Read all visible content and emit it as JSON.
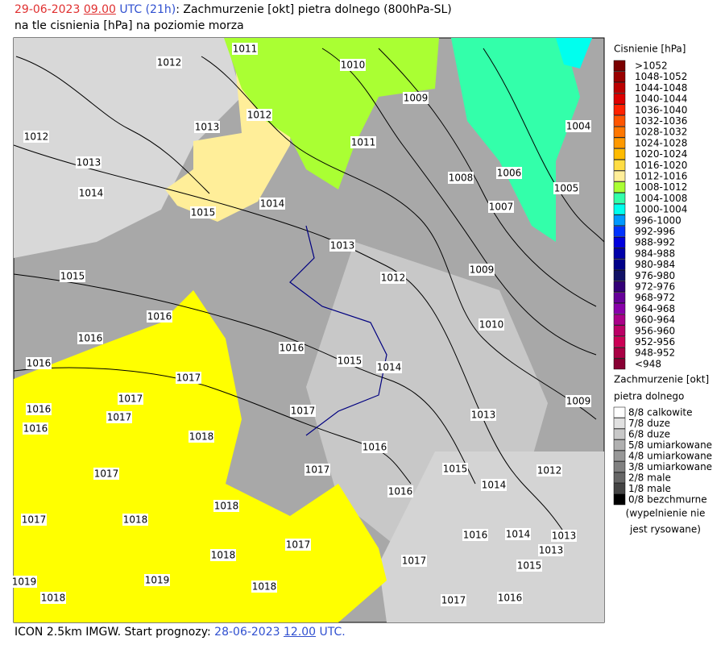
{
  "header": {
    "date": "29-06-2023",
    "time": "09.00",
    "tz": "UTC",
    "lead": "(21h)",
    "title": ": Zachmurzenie [okt] pietra dolnego (800hPa-SL)",
    "subtitle": "na tle cisnienia [hPa] na poziomie morza"
  },
  "pressure_legend": {
    "title": "Cisnienie [hPa]",
    "items": [
      {
        "label": ">1052",
        "color": "#7a0000"
      },
      {
        "label": "1048-1052",
        "color": "#990000"
      },
      {
        "label": "1044-1048",
        "color": "#bb0000"
      },
      {
        "label": "1040-1044",
        "color": "#dd0000"
      },
      {
        "label": "1036-1040",
        "color": "#ff2200"
      },
      {
        "label": "1032-1036",
        "color": "#ff5500"
      },
      {
        "label": "1028-1032",
        "color": "#ff7700"
      },
      {
        "label": "1024-1028",
        "color": "#ff9900"
      },
      {
        "label": "1020-1024",
        "color": "#ffbb00"
      },
      {
        "label": "1016-1020",
        "color": "#ffdd44"
      },
      {
        "label": "1012-1016",
        "color": "#ffee99"
      },
      {
        "label": "1008-1012",
        "color": "#aaff33"
      },
      {
        "label": "1004-1008",
        "color": "#33ffaa"
      },
      {
        "label": "1000-1004",
        "color": "#00ffee"
      },
      {
        "label": "996-1000",
        "color": "#0099ff"
      },
      {
        "label": "992-996",
        "color": "#0033ff"
      },
      {
        "label": "988-992",
        "color": "#0000dd"
      },
      {
        "label": "984-988",
        "color": "#0000aa"
      },
      {
        "label": "980-984",
        "color": "#000088"
      },
      {
        "label": "976-980",
        "color": "#111166"
      },
      {
        "label": "972-976",
        "color": "#330077"
      },
      {
        "label": "968-972",
        "color": "#660099"
      },
      {
        "label": "964-968",
        "color": "#8800aa"
      },
      {
        "label": "960-964",
        "color": "#aa0088"
      },
      {
        "label": "956-960",
        "color": "#bb0066"
      },
      {
        "label": "952-956",
        "color": "#cc0055"
      },
      {
        "label": "948-952",
        "color": "#aa0044"
      },
      {
        "label": "<948",
        "color": "#880033"
      }
    ]
  },
  "cloud_legend": {
    "title": "Zachmurzenie [okt]",
    "subtitle": "pietra dolnego",
    "items": [
      {
        "label": "8/8 calkowite",
        "color": "#ffffff"
      },
      {
        "label": "7/8 duze",
        "color": "#e0e0e0"
      },
      {
        "label": "6/8 duze",
        "color": "#c8c8c8"
      },
      {
        "label": "5/8 umiarkowane",
        "color": "#b0b0b0"
      },
      {
        "label": "4/8 umiarkowane",
        "color": "#989898"
      },
      {
        "label": "3/8 umiarkowane",
        "color": "#808080"
      },
      {
        "label": "2/8 male",
        "color": "#666666"
      },
      {
        "label": "1/8 male",
        "color": "#444444"
      },
      {
        "label": "0/8 bezchmurne",
        "color": "#000000"
      }
    ],
    "note": [
      "(wypelnienie nie",
      "jest rysowane)"
    ]
  },
  "isobar_labels": [
    "1011",
    "1010",
    "1012",
    "1009",
    "1004",
    "1012",
    "1013",
    "1012",
    "1011",
    "1013",
    "1008",
    "1006",
    "1005",
    "1014",
    "1014",
    "1007",
    "1015",
    "1013",
    "1009",
    "1012",
    "1015",
    "1016",
    "1010",
    "1016",
    "1016",
    "1015",
    "1014",
    "1016",
    "1017",
    "1009",
    "1017",
    "1016",
    "1017",
    "1017",
    "1013",
    "1016",
    "1018",
    "1016",
    "1015",
    "1017",
    "1012",
    "1014",
    "1016",
    "1017",
    "1018",
    "1017",
    "1018",
    "1016",
    "1014",
    "1013",
    "1013",
    "1017",
    "1018",
    "1017",
    "1015",
    "1019",
    "1018",
    "1019",
    "1018",
    "1017",
    "1016"
  ],
  "footer": {
    "model": "ICON 2.5km IMGW. Start prognozy:",
    "date": "28-06-2023",
    "time": "12.00",
    "tz": "UTC."
  }
}
